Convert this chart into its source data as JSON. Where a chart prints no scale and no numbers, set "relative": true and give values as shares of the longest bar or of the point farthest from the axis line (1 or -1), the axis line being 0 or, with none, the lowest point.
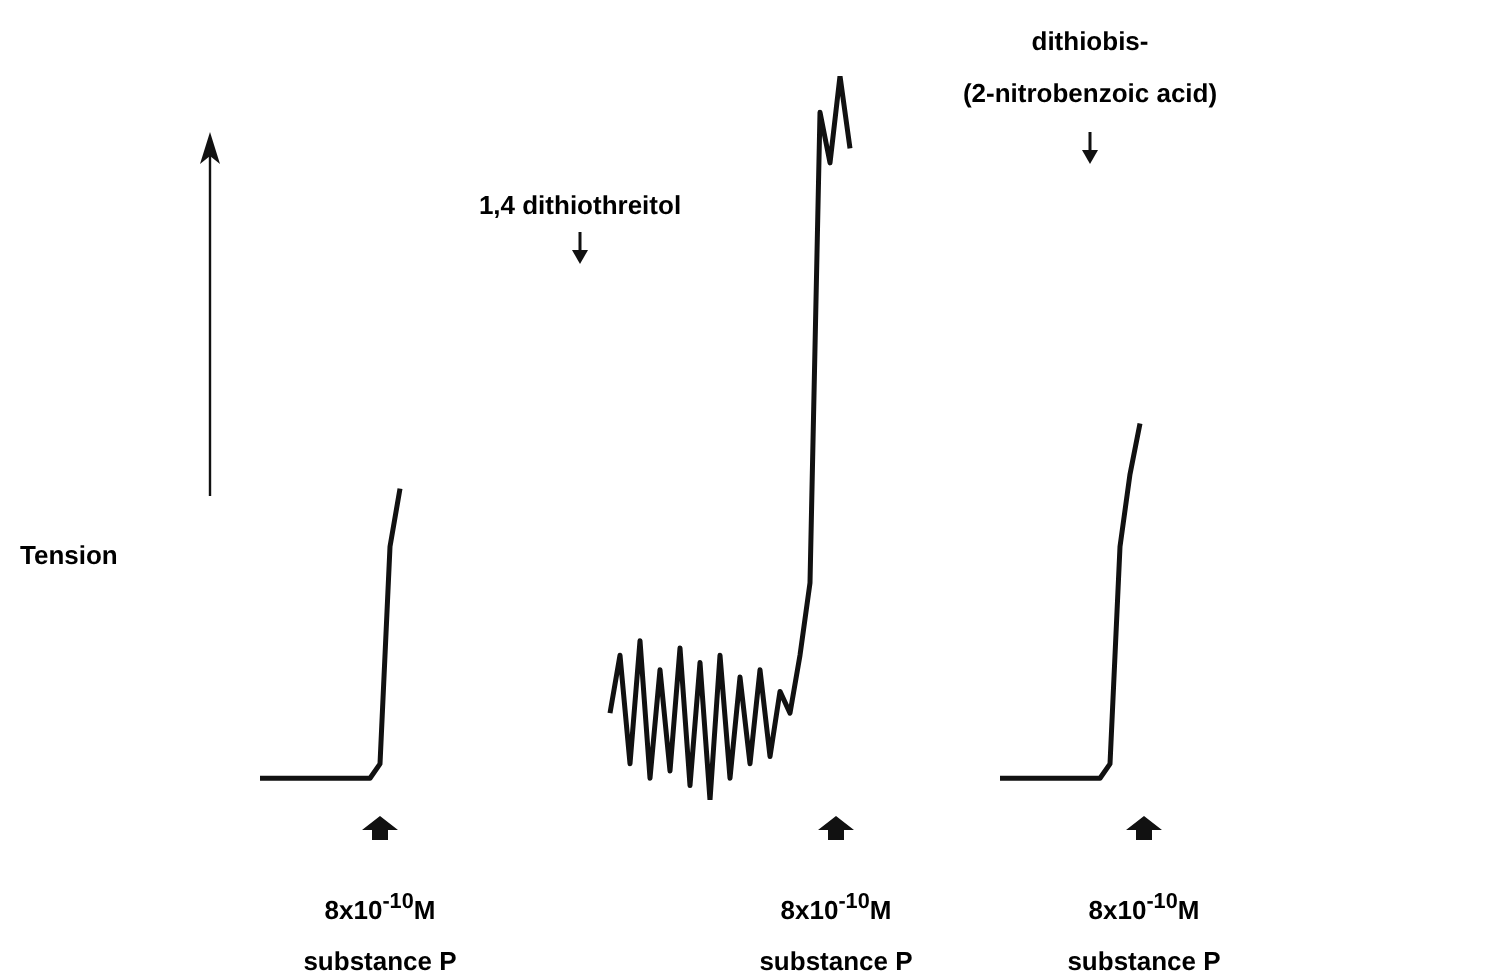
{
  "chart_data": {
    "type": "line",
    "relative": true,
    "ylabel": "Tension",
    "marker": "none",
    "legend": false,
    "categories": [
      null,
      null,
      null,
      null,
      null,
      null,
      null,
      null,
      null,
      null,
      null,
      null,
      null,
      null,
      null,
      null,
      null,
      null,
      null,
      null,
      null,
      null,
      null,
      null,
      null,
      null,
      null,
      null,
      null,
      null,
      null,
      null,
      null,
      null,
      null,
      null,
      null,
      null,
      null,
      null,
      null,
      null,
      null,
      null,
      null,
      null,
      null,
      null,
      null,
      null,
      null,
      null,
      null,
      null,
      null,
      null,
      null,
      null,
      null,
      null,
      null,
      null,
      null,
      null,
      null,
      null,
      null,
      null,
      null,
      null,
      null,
      null,
      null,
      null,
      null,
      null,
      null,
      null,
      null,
      null,
      null,
      null,
      null,
      null,
      null,
      null,
      null,
      null,
      null,
      null,
      null,
      null,
      null,
      null,
      null,
      null,
      null,
      null,
      null,
      null
    ],
    "series": [
      {
        "color": "#111111",
        "values": [
          null,
          null,
          null,
          null,
          0.03,
          0.03,
          0.03,
          0.03,
          0.03,
          0.03,
          0.03,
          0.03,
          0.03,
          0.03,
          0.03,
          0.03,
          0.05,
          0.35,
          0.43,
          null,
          null,
          null,
          null,
          null,
          null,
          null,
          null,
          null,
          null,
          null,
          null,
          null,
          null,
          null,
          null,
          null,
          null,
          null,
          null,
          null,
          null,
          null,
          null,
          null,
          null,
          null,
          null,
          null,
          null,
          null,
          null,
          null,
          null,
          null,
          null,
          null,
          null,
          null,
          null,
          null,
          null,
          null,
          null,
          null,
          null,
          null,
          null,
          null,
          null,
          null,
          null,
          null,
          null,
          null,
          null,
          null,
          null,
          null,
          null,
          null,
          null,
          null,
          null,
          null,
          null,
          null,
          null,
          null,
          null,
          null,
          null,
          null,
          null,
          null,
          null,
          null,
          null,
          null,
          null,
          null
        ]
      },
      {
        "color": "#111111",
        "values": [
          null,
          null,
          null,
          null,
          null,
          null,
          null,
          null,
          null,
          null,
          null,
          null,
          null,
          null,
          null,
          null,
          null,
          null,
          null,
          null,
          null,
          null,
          null,
          null,
          null,
          null,
          null,
          null,
          null,
          null,
          null,
          null,
          null,
          null,
          null,
          null,
          null,
          null,
          null,
          0.12,
          0.2,
          0.05,
          0.22,
          0.03,
          0.18,
          0.04,
          0.21,
          0.02,
          0.19,
          0.0,
          0.2,
          0.03,
          0.17,
          0.05,
          0.18,
          0.06,
          0.15,
          0.12,
          0.2,
          0.3,
          0.95,
          0.88,
          1.0,
          0.9,
          null,
          null,
          null,
          null,
          null,
          null,
          null,
          null,
          null,
          null,
          null,
          null,
          null,
          null,
          null,
          null,
          null,
          null,
          null,
          null,
          null,
          null,
          null,
          null,
          null,
          null,
          null,
          null,
          null,
          null,
          null,
          null,
          null,
          null,
          null,
          null
        ]
      },
      {
        "color": "#111111",
        "values": [
          null,
          null,
          null,
          null,
          null,
          null,
          null,
          null,
          null,
          null,
          null,
          null,
          null,
          null,
          null,
          null,
          null,
          null,
          null,
          null,
          null,
          null,
          null,
          null,
          null,
          null,
          null,
          null,
          null,
          null,
          null,
          null,
          null,
          null,
          null,
          null,
          null,
          null,
          null,
          null,
          null,
          null,
          null,
          null,
          null,
          null,
          null,
          null,
          null,
          null,
          null,
          null,
          null,
          null,
          null,
          null,
          null,
          null,
          null,
          null,
          null,
          null,
          null,
          null,
          null,
          null,
          null,
          null,
          null,
          null,
          null,
          null,
          null,
          null,
          null,
          null,
          null,
          null,
          0.03,
          0.03,
          0.03,
          0.03,
          0.03,
          0.03,
          0.03,
          0.03,
          0.03,
          0.03,
          0.03,
          0.05,
          0.35,
          0.45,
          0.52,
          null,
          null,
          null,
          null,
          null,
          null,
          null
        ]
      }
    ],
    "annotations": [
      "1,4 dithiothreitol",
      "dithiobis-\n(2-nitrobenzoic acid)",
      "8x10$^{-10}$M\nsubstance P",
      "8x10$^{-10}$M\nsubstance P",
      "8x10$^{-10}$M\nsubstance P"
    ]
  }
}
